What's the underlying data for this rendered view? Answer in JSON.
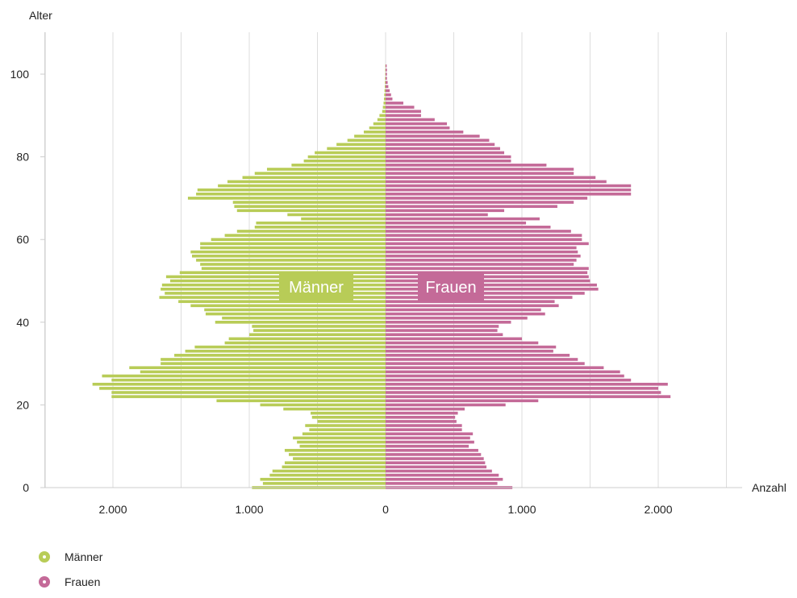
{
  "colors": {
    "men": "#b8cc57",
    "women": "#c46a98",
    "grid": "#dddddd",
    "axis": "#cccccc"
  },
  "legend": [
    {
      "label": "Männer",
      "color": "#b8cc57",
      "icon": "circle-dot-icon"
    },
    {
      "label": "Frauen",
      "color": "#c46a98",
      "icon": "circle-dot-icon"
    }
  ],
  "chart_data": {
    "type": "bar",
    "orientation": "horizontal",
    "subtype": "population-pyramid",
    "ylabel": "Alter",
    "xlabel": "Anzahl",
    "ylim": [
      0,
      100
    ],
    "xlim": [
      -2500,
      2500
    ],
    "yticks": [
      "0",
      "20",
      "40",
      "60",
      "80",
      "100"
    ],
    "xticks": [
      "2.000",
      "1.000",
      "0",
      "1.000",
      "2.000"
    ],
    "xtick_values": [
      -2000,
      -1000,
      0,
      1000,
      2000
    ],
    "center_labels": [
      "Männer",
      "Frauen"
    ],
    "grid": "vertical",
    "legend_position": "bottom-left",
    "ages": [
      0,
      1,
      2,
      3,
      4,
      5,
      6,
      7,
      8,
      9,
      10,
      11,
      12,
      13,
      14,
      15,
      16,
      17,
      18,
      19,
      20,
      21,
      22,
      23,
      24,
      25,
      26,
      27,
      28,
      29,
      30,
      31,
      32,
      33,
      34,
      35,
      36,
      37,
      38,
      39,
      40,
      41,
      42,
      43,
      44,
      45,
      46,
      47,
      48,
      49,
      50,
      51,
      52,
      53,
      54,
      55,
      56,
      57,
      58,
      59,
      60,
      61,
      62,
      63,
      64,
      65,
      66,
      67,
      68,
      69,
      70,
      71,
      72,
      73,
      74,
      75,
      76,
      77,
      78,
      79,
      80,
      81,
      82,
      83,
      84,
      85,
      86,
      87,
      88,
      89,
      90,
      91,
      92,
      93,
      94,
      95,
      96,
      97,
      98,
      99,
      100,
      101,
      102
    ],
    "series": [
      {
        "name": "Männer",
        "values": [
          980,
          900,
          920,
          850,
          830,
          760,
          740,
          680,
          710,
          740,
          630,
          650,
          680,
          610,
          560,
          590,
          500,
          540,
          550,
          750,
          920,
          1240,
          2010,
          2010,
          2100,
          2150,
          2010,
          2080,
          1800,
          1880,
          1650,
          1650,
          1550,
          1470,
          1400,
          1180,
          1150,
          1000,
          970,
          980,
          1250,
          1200,
          1320,
          1330,
          1430,
          1520,
          1660,
          1620,
          1650,
          1640,
          1580,
          1610,
          1510,
          1350,
          1360,
          1390,
          1420,
          1430,
          1360,
          1360,
          1280,
          1180,
          1090,
          960,
          950,
          620,
          720,
          1090,
          1110,
          1120,
          1450,
          1390,
          1380,
          1230,
          1160,
          1050,
          960,
          870,
          690,
          600,
          570,
          520,
          430,
          360,
          280,
          230,
          160,
          120,
          90,
          60,
          45,
          25,
          20,
          15,
          12,
          10,
          8,
          6,
          5,
          4,
          3,
          3,
          2
        ]
      },
      {
        "name": "Frauen",
        "values": [
          930,
          820,
          860,
          830,
          780,
          740,
          730,
          720,
          700,
          680,
          610,
          650,
          620,
          640,
          560,
          560,
          520,
          510,
          530,
          580,
          880,
          1120,
          2090,
          2020,
          2000,
          2070,
          1800,
          1750,
          1720,
          1600,
          1460,
          1410,
          1350,
          1230,
          1250,
          1120,
          1000,
          860,
          820,
          830,
          920,
          1040,
          1170,
          1140,
          1270,
          1240,
          1370,
          1460,
          1560,
          1550,
          1500,
          1490,
          1480,
          1490,
          1380,
          1400,
          1430,
          1410,
          1400,
          1490,
          1440,
          1440,
          1360,
          1210,
          1030,
          1130,
          750,
          870,
          1260,
          1380,
          1480,
          1800,
          1800,
          1800,
          1620,
          1540,
          1380,
          1380,
          1180,
          920,
          920,
          870,
          840,
          800,
          760,
          690,
          570,
          470,
          450,
          360,
          260,
          260,
          210,
          130,
          50,
          40,
          30,
          20,
          15,
          10,
          10,
          10,
          8
        ]
      }
    ]
  }
}
